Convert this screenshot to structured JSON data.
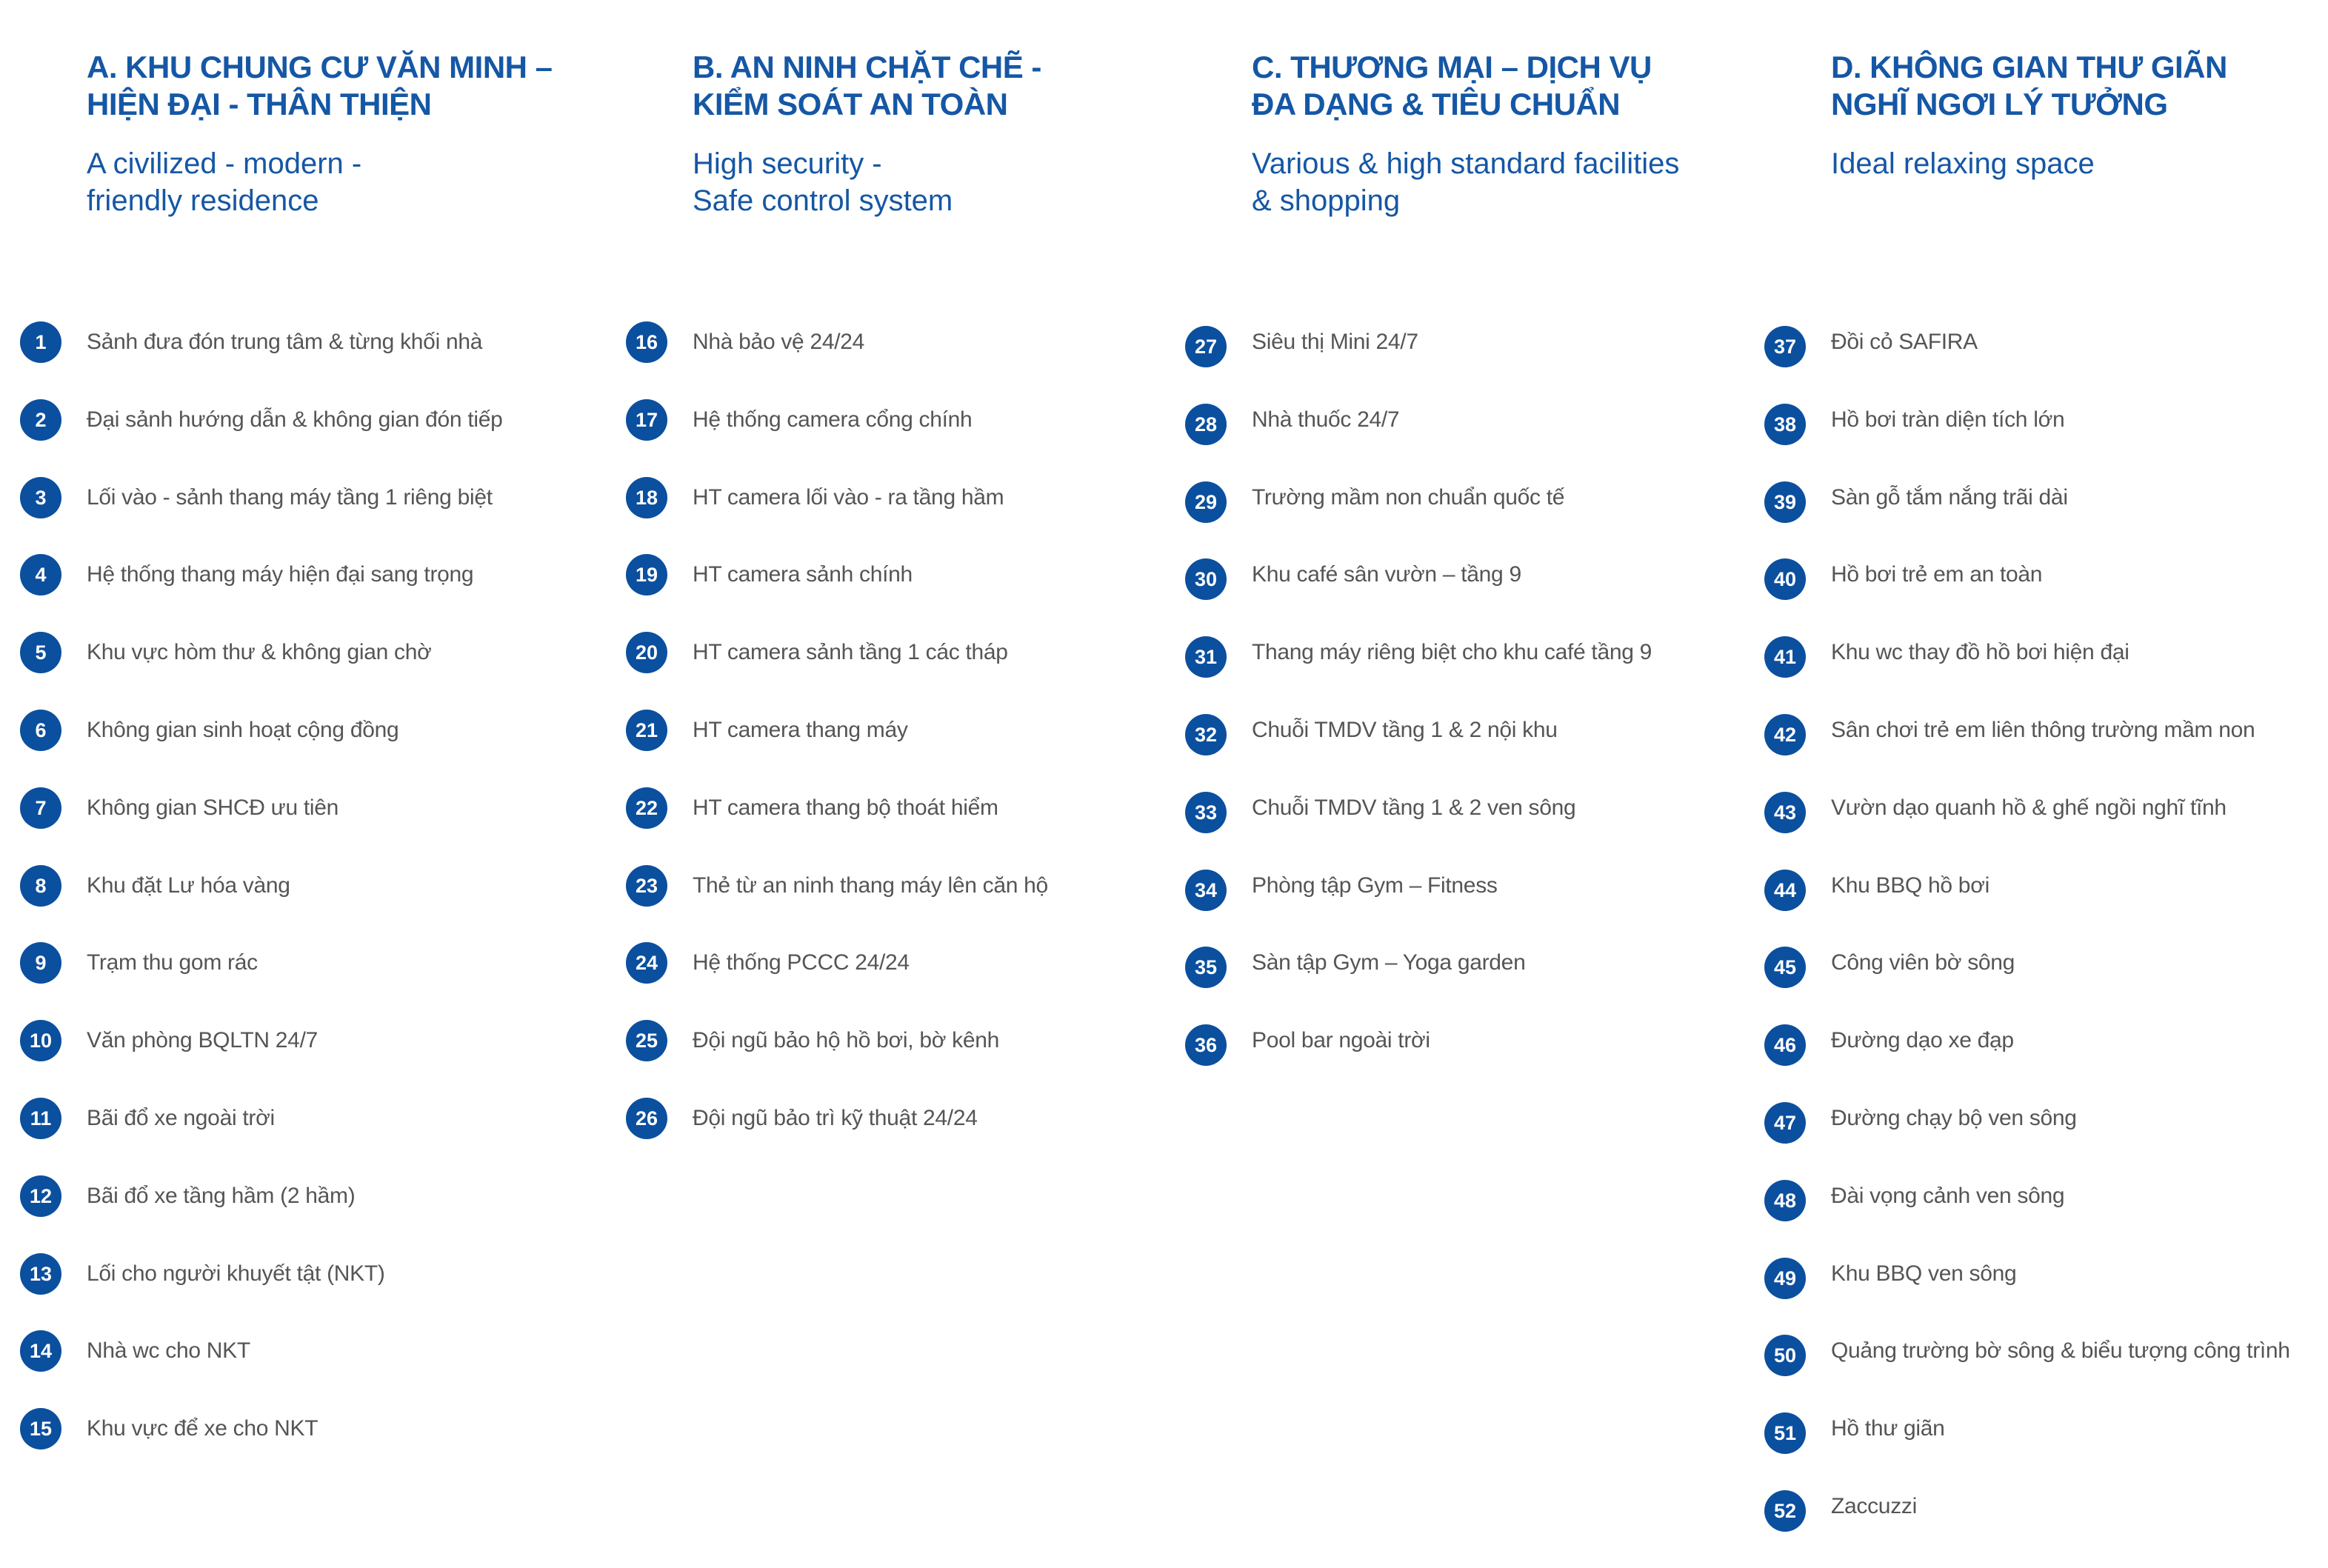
{
  "columns": [
    {
      "title": [
        "A. KHU CHUNG CƯ VĂN MINH –",
        "HIỆN ĐẠI - THÂN THIỆN"
      ],
      "subtitle": [
        "A civilized - modern -",
        "friendly residence"
      ],
      "items": [
        {
          "number": 1,
          "text": "Sảnh đưa đón trung tâm & từng khối nhà"
        },
        {
          "number": 2,
          "text": "Đại sảnh hướng dẫn & không gian đón tiếp"
        },
        {
          "number": 3,
          "text": "Lối vào - sảnh thang máy tầng 1 riêng biệt"
        },
        {
          "number": 4,
          "text": "Hệ thống thang máy hiện đại sang trọng"
        },
        {
          "number": 5,
          "text": "Khu vực hòm thư & không gian chờ"
        },
        {
          "number": 6,
          "text": "Không gian sinh hoạt cộng đồng"
        },
        {
          "number": 7,
          "text": "Không gian SHCĐ ưu tiên"
        },
        {
          "number": 8,
          "text": "Khu đặt Lư hóa vàng"
        },
        {
          "number": 9,
          "text": "Trạm thu gom rác"
        },
        {
          "number": 10,
          "text": "Văn phòng BQLTN 24/7"
        },
        {
          "number": 11,
          "text": "Bãi đổ xe ngoài trời"
        },
        {
          "number": 12,
          "text": "Bãi đổ xe tầng hầm (2 hầm)"
        },
        {
          "number": 13,
          "text": "Lối cho người khuyết tật (NKT)"
        },
        {
          "number": 14,
          "text": "Nhà wc cho NKT"
        },
        {
          "number": 15,
          "text": "Khu vực để xe cho NKT"
        }
      ]
    },
    {
      "title": [
        "B. AN NINH CHẶT CHẼ -",
        "KIỂM SOÁT AN TOÀN"
      ],
      "subtitle": [
        "High security -",
        "Safe control system"
      ],
      "items": [
        {
          "number": 16,
          "text": "Nhà bảo vệ 24/24"
        },
        {
          "number": 17,
          "text": "Hệ thống camera cổng chính"
        },
        {
          "number": 18,
          "text": "HT camera lối vào - ra tầng hầm"
        },
        {
          "number": 19,
          "text": "HT camera sảnh chính"
        },
        {
          "number": 20,
          "text": "HT camera sảnh tầng 1 các tháp"
        },
        {
          "number": 21,
          "text": "HT camera thang máy"
        },
        {
          "number": 22,
          "text": "HT camera thang bộ thoát hiểm"
        },
        {
          "number": 23,
          "text": "Thẻ từ an ninh thang máy lên căn hộ"
        },
        {
          "number": 24,
          "text": "Hệ thống PCCC 24/24"
        },
        {
          "number": 25,
          "text": "Đội ngũ bảo hộ hồ bơi, bờ kênh"
        },
        {
          "number": 26,
          "text": "Đội ngũ bảo trì kỹ thuật 24/24"
        }
      ]
    },
    {
      "title": [
        "C. THƯƠNG MẠI – DỊCH VỤ",
        "ĐA DẠNG & TIÊU CHUẨN"
      ],
      "subtitle": [
        "Various & high standard facilities",
        "& shopping"
      ],
      "items": [
        {
          "number": 27,
          "text": "Siêu thị Mini 24/7"
        },
        {
          "number": 28,
          "text": "Nhà thuốc 24/7"
        },
        {
          "number": 29,
          "text": "Trường mầm non chuẩn quốc tế"
        },
        {
          "number": 30,
          "text": "Khu café sân vườn – tầng 9"
        },
        {
          "number": 31,
          "text": "Thang máy riêng biệt cho khu café tầng 9"
        },
        {
          "number": 32,
          "text": "Chuỗi TMDV tầng 1 & 2 nội khu"
        },
        {
          "number": 33,
          "text": "Chuỗi TMDV tầng 1 & 2 ven sông"
        },
        {
          "number": 34,
          "text": "Phòng tập Gym – Fitness"
        },
        {
          "number": 35,
          "text": "Sàn tập Gym – Yoga garden"
        },
        {
          "number": 36,
          "text": "Pool bar ngoài trời"
        }
      ]
    },
    {
      "title": [
        "D. KHÔNG GIAN THƯ GIÃN",
        "NGHĨ NGƠI LÝ TƯỞNG"
      ],
      "subtitle": [
        "Ideal relaxing space"
      ],
      "items": [
        {
          "number": 37,
          "text": "Đồi cỏ SAFIRA"
        },
        {
          "number": 38,
          "text": "Hồ bơi tràn diện tích lớn"
        },
        {
          "number": 39,
          "text": "Sàn gỗ tắm nắng trãi dài"
        },
        {
          "number": 40,
          "text": "Hồ bơi trẻ em an toàn"
        },
        {
          "number": 41,
          "text": "Khu wc thay đồ hồ bơi hiện đại"
        },
        {
          "number": 42,
          "text": "Sân chơi trẻ em liên thông trường mầm non"
        },
        {
          "number": 43,
          "text": "Vườn dạo quanh hồ & ghế ngồi nghĩ tĩnh"
        },
        {
          "number": 44,
          "text": "Khu BBQ hồ bơi"
        },
        {
          "number": 45,
          "text": "Công viên bờ sông"
        },
        {
          "number": 46,
          "text": "Đường dạo xe đạp"
        },
        {
          "number": 47,
          "text": "Đường chạy bộ ven sông"
        },
        {
          "number": 48,
          "text": "Đài vọng cảnh ven sông"
        },
        {
          "number": 49,
          "text": "Khu BBQ ven sông"
        },
        {
          "number": 50,
          "text": "Quảng trường bờ sông & biểu tượng công trình"
        },
        {
          "number": 51,
          "text": "Hồ thư  giãn"
        },
        {
          "number": 52,
          "text": "Zaccuzzi"
        }
      ]
    }
  ]
}
